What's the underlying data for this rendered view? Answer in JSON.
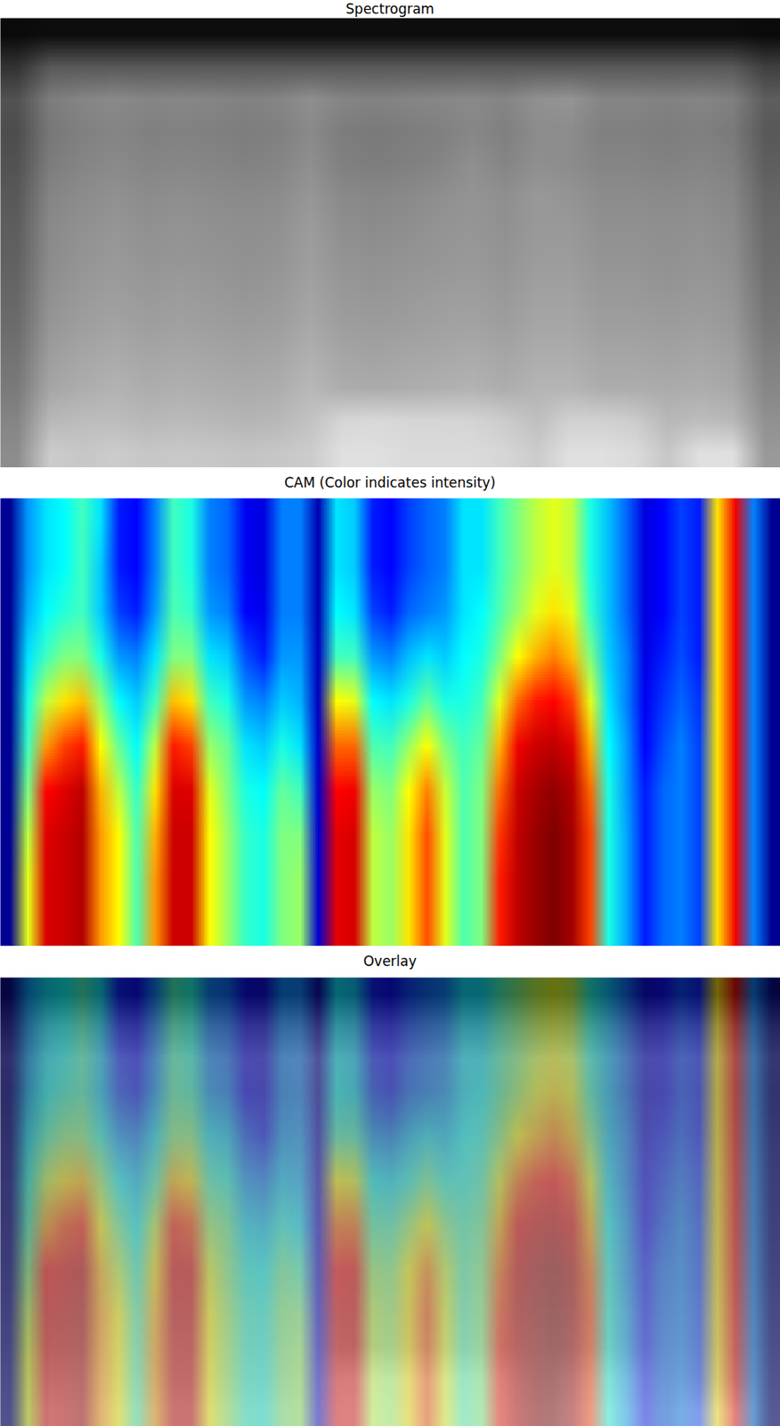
{
  "chart_data": [
    {
      "type": "heatmap",
      "title": "Spectrogram",
      "color": "gray",
      "tick_labels": false,
      "intensity_range": [
        0,
        1
      ],
      "cells": [
        [
          0.04,
          0.05,
          0.05,
          0.05,
          0.05,
          0.05,
          0.05,
          0.05,
          0.05,
          0.05,
          0.05,
          0.05,
          0.05,
          0.05,
          0.05,
          0.05,
          0.05,
          0.05,
          0.05,
          0.05,
          0.05,
          0.05,
          0.05,
          0.04
        ],
        [
          0.2,
          0.35,
          0.35,
          0.35,
          0.35,
          0.35,
          0.35,
          0.35,
          0.35,
          0.35,
          0.35,
          0.35,
          0.35,
          0.35,
          0.35,
          0.35,
          0.35,
          0.35,
          0.35,
          0.35,
          0.35,
          0.35,
          0.35,
          0.25
        ],
        [
          0.32,
          0.49,
          0.52,
          0.54,
          0.52,
          0.53,
          0.52,
          0.51,
          0.52,
          0.56,
          0.52,
          0.51,
          0.52,
          0.53,
          0.54,
          0.52,
          0.57,
          0.58,
          0.52,
          0.52,
          0.51,
          0.52,
          0.5,
          0.37
        ],
        [
          0.3,
          0.47,
          0.5,
          0.52,
          0.5,
          0.51,
          0.5,
          0.49,
          0.5,
          0.54,
          0.49,
          0.48,
          0.49,
          0.5,
          0.53,
          0.5,
          0.55,
          0.55,
          0.5,
          0.5,
          0.49,
          0.5,
          0.48,
          0.35
        ],
        [
          0.32,
          0.49,
          0.52,
          0.54,
          0.52,
          0.53,
          0.52,
          0.51,
          0.52,
          0.56,
          0.5,
          0.49,
          0.5,
          0.52,
          0.56,
          0.52,
          0.56,
          0.55,
          0.52,
          0.52,
          0.51,
          0.52,
          0.5,
          0.37
        ],
        [
          0.35,
          0.52,
          0.55,
          0.57,
          0.55,
          0.56,
          0.55,
          0.54,
          0.55,
          0.59,
          0.54,
          0.53,
          0.54,
          0.56,
          0.58,
          0.56,
          0.6,
          0.58,
          0.55,
          0.55,
          0.54,
          0.55,
          0.53,
          0.4
        ],
        [
          0.37,
          0.54,
          0.57,
          0.59,
          0.57,
          0.58,
          0.57,
          0.56,
          0.57,
          0.61,
          0.56,
          0.55,
          0.56,
          0.58,
          0.59,
          0.57,
          0.6,
          0.6,
          0.57,
          0.57,
          0.56,
          0.57,
          0.55,
          0.42
        ],
        [
          0.38,
          0.55,
          0.58,
          0.6,
          0.58,
          0.59,
          0.58,
          0.57,
          0.58,
          0.62,
          0.58,
          0.57,
          0.58,
          0.59,
          0.6,
          0.58,
          0.61,
          0.61,
          0.58,
          0.58,
          0.57,
          0.58,
          0.56,
          0.43
        ],
        [
          0.4,
          0.57,
          0.6,
          0.62,
          0.6,
          0.61,
          0.6,
          0.59,
          0.6,
          0.64,
          0.6,
          0.59,
          0.6,
          0.61,
          0.62,
          0.6,
          0.63,
          0.63,
          0.6,
          0.6,
          0.59,
          0.6,
          0.58,
          0.45
        ],
        [
          0.42,
          0.59,
          0.62,
          0.64,
          0.62,
          0.63,
          0.62,
          0.61,
          0.62,
          0.66,
          0.62,
          0.61,
          0.62,
          0.63,
          0.64,
          0.62,
          0.65,
          0.65,
          0.62,
          0.62,
          0.61,
          0.62,
          0.6,
          0.47
        ],
        [
          0.45,
          0.62,
          0.65,
          0.67,
          0.65,
          0.66,
          0.65,
          0.64,
          0.65,
          0.69,
          0.65,
          0.64,
          0.65,
          0.66,
          0.67,
          0.65,
          0.68,
          0.68,
          0.65,
          0.65,
          0.64,
          0.65,
          0.63,
          0.5
        ],
        [
          0.48,
          0.65,
          0.68,
          0.7,
          0.68,
          0.69,
          0.68,
          0.67,
          0.68,
          0.72,
          0.68,
          0.67,
          0.68,
          0.69,
          0.7,
          0.68,
          0.71,
          0.71,
          0.68,
          0.68,
          0.67,
          0.68,
          0.66,
          0.53
        ],
        [
          0.52,
          0.72,
          0.74,
          0.74,
          0.72,
          0.73,
          0.72,
          0.71,
          0.72,
          0.76,
          0.84,
          0.85,
          0.84,
          0.84,
          0.83,
          0.8,
          0.75,
          0.82,
          0.82,
          0.8,
          0.72,
          0.74,
          0.72,
          0.57
        ],
        [
          0.55,
          0.8,
          0.78,
          0.8,
          0.78,
          0.79,
          0.78,
          0.77,
          0.78,
          0.8,
          0.88,
          0.88,
          0.86,
          0.86,
          0.86,
          0.84,
          0.8,
          0.88,
          0.88,
          0.86,
          0.78,
          0.88,
          0.88,
          0.6
        ]
      ]
    },
    {
      "type": "heatmap",
      "title": "CAM (Color indicates intensity)",
      "color": "jet",
      "tick_labels": false,
      "color_range": [
        0,
        1
      ],
      "cells_by_column": [
        [
          0.03,
          0.03,
          0.03,
          0.03,
          0.03,
          0.03,
          0.03,
          0.03,
          0.03,
          0.03
        ],
        [
          0.32,
          0.32,
          0.34,
          0.38,
          0.42,
          0.45,
          0.5,
          0.55,
          0.58,
          0.58
        ],
        [
          0.38,
          0.38,
          0.4,
          0.45,
          0.55,
          0.68,
          0.8,
          0.85,
          0.86,
          0.86
        ],
        [
          0.4,
          0.4,
          0.43,
          0.5,
          0.62,
          0.75,
          0.85,
          0.88,
          0.88,
          0.88
        ],
        [
          0.45,
          0.45,
          0.45,
          0.5,
          0.65,
          0.78,
          0.9,
          0.92,
          0.92,
          0.92
        ],
        [
          0.38,
          0.36,
          0.36,
          0.42,
          0.52,
          0.6,
          0.66,
          0.68,
          0.68,
          0.68
        ],
        [
          0.22,
          0.22,
          0.25,
          0.32,
          0.4,
          0.48,
          0.55,
          0.6,
          0.6,
          0.6
        ],
        [
          0.2,
          0.2,
          0.22,
          0.3,
          0.36,
          0.4,
          0.44,
          0.46,
          0.46,
          0.46
        ],
        [
          0.3,
          0.3,
          0.32,
          0.38,
          0.45,
          0.55,
          0.62,
          0.66,
          0.68,
          0.68
        ],
        [
          0.45,
          0.45,
          0.46,
          0.5,
          0.65,
          0.78,
          0.86,
          0.88,
          0.88,
          0.88
        ],
        [
          0.42,
          0.42,
          0.44,
          0.5,
          0.62,
          0.75,
          0.85,
          0.88,
          0.88,
          0.88
        ],
        [
          0.3,
          0.3,
          0.32,
          0.38,
          0.45,
          0.52,
          0.58,
          0.6,
          0.6,
          0.6
        ],
        [
          0.28,
          0.28,
          0.3,
          0.36,
          0.42,
          0.48,
          0.5,
          0.52,
          0.52,
          0.52
        ],
        [
          0.18,
          0.18,
          0.2,
          0.26,
          0.32,
          0.38,
          0.42,
          0.44,
          0.44,
          0.44
        ],
        [
          0.15,
          0.15,
          0.17,
          0.22,
          0.3,
          0.36,
          0.4,
          0.42,
          0.42,
          0.42
        ],
        [
          0.3,
          0.3,
          0.3,
          0.32,
          0.36,
          0.42,
          0.48,
          0.5,
          0.5,
          0.5
        ],
        [
          0.3,
          0.3,
          0.3,
          0.32,
          0.34,
          0.38,
          0.45,
          0.5,
          0.52,
          0.52
        ],
        [
          0.08,
          0.08,
          0.08,
          0.1,
          0.1,
          0.12,
          0.12,
          0.13,
          0.13,
          0.13
        ],
        [
          0.38,
          0.38,
          0.4,
          0.45,
          0.6,
          0.72,
          0.8,
          0.84,
          0.84,
          0.84
        ],
        [
          0.36,
          0.36,
          0.38,
          0.45,
          0.58,
          0.72,
          0.82,
          0.86,
          0.86,
          0.86
        ],
        [
          0.22,
          0.22,
          0.25,
          0.32,
          0.4,
          0.46,
          0.52,
          0.55,
          0.55,
          0.55
        ],
        [
          0.2,
          0.2,
          0.22,
          0.3,
          0.38,
          0.45,
          0.5,
          0.52,
          0.52,
          0.52
        ],
        [
          0.25,
          0.25,
          0.28,
          0.35,
          0.42,
          0.52,
          0.6,
          0.62,
          0.62,
          0.62
        ],
        [
          0.28,
          0.28,
          0.3,
          0.38,
          0.48,
          0.6,
          0.7,
          0.74,
          0.74,
          0.74
        ],
        [
          0.3,
          0.3,
          0.32,
          0.36,
          0.42,
          0.5,
          0.56,
          0.58,
          0.58,
          0.58
        ],
        [
          0.38,
          0.38,
          0.38,
          0.4,
          0.42,
          0.45,
          0.46,
          0.46,
          0.46,
          0.46
        ],
        [
          0.38,
          0.38,
          0.4,
          0.42,
          0.45,
          0.48,
          0.5,
          0.5,
          0.5,
          0.5
        ],
        [
          0.45,
          0.45,
          0.46,
          0.5,
          0.58,
          0.66,
          0.72,
          0.76,
          0.78,
          0.78
        ],
        [
          0.5,
          0.5,
          0.52,
          0.6,
          0.72,
          0.82,
          0.88,
          0.9,
          0.9,
          0.9
        ],
        [
          0.55,
          0.55,
          0.58,
          0.66,
          0.78,
          0.88,
          0.94,
          0.96,
          0.96,
          0.96
        ],
        [
          0.58,
          0.58,
          0.62,
          0.7,
          0.8,
          0.9,
          0.97,
          1.0,
          1.0,
          1.0
        ],
        [
          0.55,
          0.55,
          0.58,
          0.65,
          0.75,
          0.85,
          0.92,
          0.94,
          0.94,
          0.94
        ],
        [
          0.42,
          0.42,
          0.44,
          0.5,
          0.58,
          0.66,
          0.72,
          0.75,
          0.75,
          0.75
        ],
        [
          0.35,
          0.35,
          0.35,
          0.36,
          0.38,
          0.4,
          0.42,
          0.42,
          0.42,
          0.42
        ],
        [
          0.28,
          0.28,
          0.28,
          0.3,
          0.3,
          0.32,
          0.32,
          0.33,
          0.33,
          0.33
        ],
        [
          0.15,
          0.15,
          0.15,
          0.16,
          0.18,
          0.2,
          0.22,
          0.22,
          0.22,
          0.22
        ],
        [
          0.2,
          0.2,
          0.2,
          0.22,
          0.24,
          0.26,
          0.28,
          0.28,
          0.28,
          0.28
        ],
        [
          0.25,
          0.25,
          0.25,
          0.26,
          0.28,
          0.3,
          0.3,
          0.3,
          0.3,
          0.3
        ],
        [
          0.22,
          0.22,
          0.22,
          0.22,
          0.24,
          0.25,
          0.25,
          0.25,
          0.25,
          0.25
        ],
        [
          0.62,
          0.62,
          0.62,
          0.62,
          0.62,
          0.62,
          0.62,
          0.62,
          0.62,
          0.62
        ],
        [
          0.82,
          0.82,
          0.82,
          0.82,
          0.82,
          0.82,
          0.82,
          0.82,
          0.82,
          0.82
        ],
        [
          0.3,
          0.3,
          0.3,
          0.3,
          0.3,
          0.3,
          0.3,
          0.3,
          0.3,
          0.3
        ],
        [
          0.03,
          0.03,
          0.03,
          0.03,
          0.03,
          0.03,
          0.03,
          0.03,
          0.03,
          0.03
        ]
      ]
    },
    {
      "type": "overlay",
      "title": "Overlay",
      "tick_labels": false
    }
  ]
}
